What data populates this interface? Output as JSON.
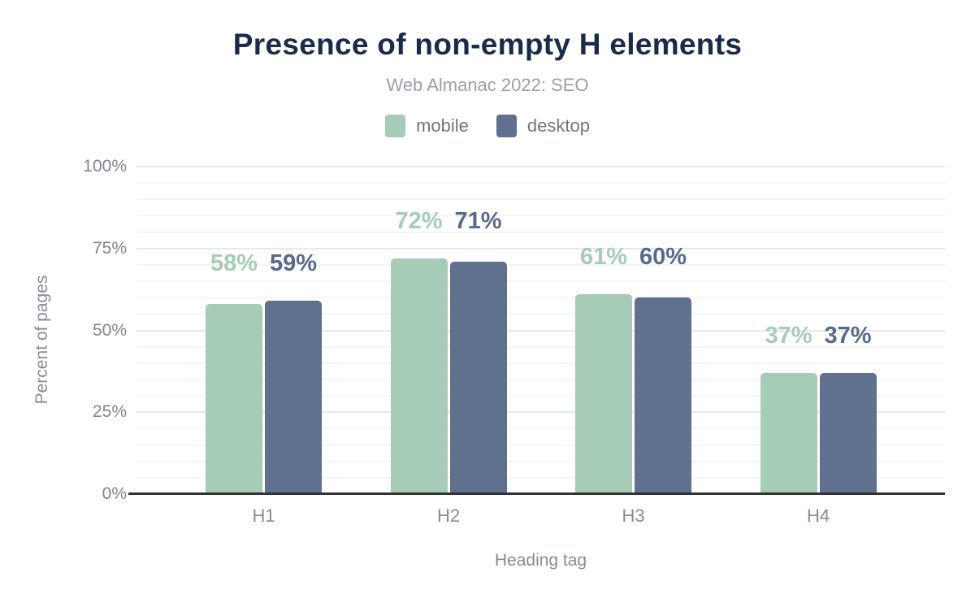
{
  "title": "Presence of non-empty H elements",
  "subtitle": "Web Almanac 2022: SEO",
  "legend": {
    "items": [
      {
        "label": "mobile",
        "color": "#a6cbb7"
      },
      {
        "label": "desktop",
        "color": "#60708f"
      }
    ]
  },
  "colors": {
    "title": "#1a2b49",
    "subtitle": "#9aa0aa",
    "axis_text": "#868d96",
    "axis_line": "#333333",
    "mobile": "#a6cbb7",
    "desktop": "#60708f",
    "mobile_label": "#a6cbb7",
    "desktop_label": "#566a8c"
  },
  "chart_data": {
    "type": "bar",
    "categories": [
      "H1",
      "H2",
      "H3",
      "H4"
    ],
    "series": [
      {
        "name": "mobile",
        "color": "#a6cbb7",
        "label_color": "#a6cbb7",
        "values": [
          58,
          72,
          61,
          37
        ]
      },
      {
        "name": "desktop",
        "color": "#60708f",
        "label_color": "#566a8c",
        "values": [
          59,
          71,
          60,
          37
        ]
      }
    ],
    "data_labels": {
      "mobile": [
        "58%",
        "72%",
        "61%",
        "37%"
      ],
      "desktop": [
        "59%",
        "71%",
        "60%",
        "37%"
      ]
    },
    "title": "Presence of non-empty H elements",
    "subtitle": "Web Almanac 2022: SEO",
    "xlabel": "Heading tag",
    "ylabel": "Percent of pages",
    "ylim": [
      0,
      100
    ],
    "yticks": [
      0,
      25,
      50,
      75,
      100
    ],
    "ytick_labels": [
      "0%",
      "25%",
      "50%",
      "75%",
      "100%"
    ],
    "minor_grid_step": 5,
    "grid": true,
    "legend_position": "top"
  }
}
